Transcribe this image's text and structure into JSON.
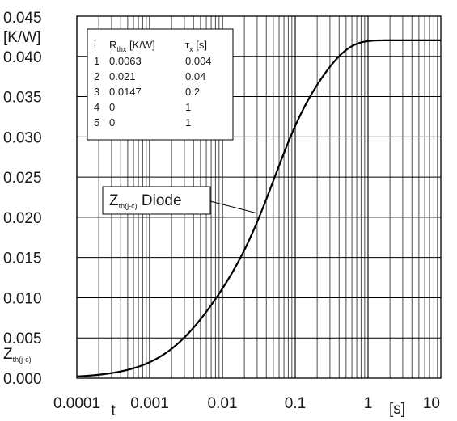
{
  "chart_data": {
    "type": "line",
    "x_scale": "log",
    "xlim": [
      0.0001,
      10
    ],
    "ylim": [
      0.0,
      0.045
    ],
    "grid": true,
    "x_ticks": [
      "0.0001",
      "0.001",
      "0.01",
      "0.1",
      "1",
      "10"
    ],
    "y_ticks": [
      "0.000",
      "0.005",
      "0.010",
      "0.015",
      "0.020",
      "0.025",
      "0.030",
      "0.035",
      "0.040",
      "0.045"
    ],
    "y_unit": "[K/W]",
    "x_unit": "[s]",
    "x_symbol": "t",
    "y_symbol": {
      "main": "Z",
      "sub": "th(j-c)"
    },
    "annotation": {
      "main": "Z",
      "sub": "th(j-c)",
      "rest": " Diode",
      "points_to": [
        0.03,
        0.0205
      ]
    },
    "params_table": {
      "headers": [
        {
          "main": "i",
          "sub": ""
        },
        {
          "main": "R",
          "sub": "thx",
          "rest": " [K/W]"
        },
        {
          "main": "τ",
          "sub": "x",
          "rest": " [s]"
        }
      ],
      "rows": [
        [
          "1",
          "0.0063",
          "0.004"
        ],
        [
          "2",
          "0.021",
          "0.04"
        ],
        [
          "3",
          "0.0147",
          "0.2"
        ],
        [
          "4",
          "0",
          "1"
        ],
        [
          "5",
          "0",
          "1"
        ]
      ]
    },
    "series": [
      {
        "r": [
          0.0063,
          0.021,
          0.0147,
          0,
          0
        ],
        "tau": [
          0.004,
          0.04,
          0.2,
          1,
          1
        ]
      }
    ]
  }
}
